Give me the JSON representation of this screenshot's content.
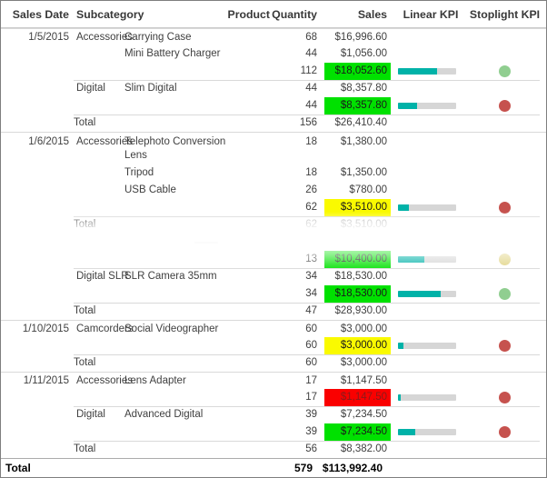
{
  "table": {
    "columns": [
      "Sales Date",
      "Subcategory",
      "Product",
      "Quantity",
      "Sales",
      "Linear KPI",
      "Stoplight KPI"
    ],
    "rows": [
      {
        "type": "detail",
        "date": "1/5/2015",
        "subcategory": "Accessories",
        "product": "Carrying Case",
        "quantity": "68",
        "sales": "$16,996.60",
        "sep": "date"
      },
      {
        "type": "detail",
        "product": "Mini Battery Charger",
        "quantity": "44",
        "sales": "$1,056.00"
      },
      {
        "type": "subtotal",
        "quantity": "112",
        "sales": "$18,052.60",
        "highlight": "green",
        "bar_pct": 67,
        "dot": "green"
      },
      {
        "type": "detail",
        "subcategory": "Digital",
        "product": "Slim Digital",
        "quantity": "44",
        "sales": "$8,357.80",
        "sep": "sub"
      },
      {
        "type": "subtotal",
        "quantity": "44",
        "sales": "$8,357.80",
        "highlight": "green",
        "bar_pct": 33,
        "dot": "red"
      },
      {
        "type": "total",
        "label": "Total",
        "quantity": "156",
        "sales": "$26,410.40",
        "sep": "sub"
      },
      {
        "type": "detail",
        "date": "1/6/2015",
        "subcategory": "Accessories",
        "product": "Telephoto Conversion Lens",
        "quantity": "18",
        "sales": "$1,380.00",
        "sep": "date",
        "tall": true
      },
      {
        "type": "detail",
        "product": "Tripod",
        "quantity": "18",
        "sales": "$1,350.00"
      },
      {
        "type": "detail",
        "product": "USB Cable",
        "quantity": "26",
        "sales": "$780.00"
      },
      {
        "type": "subtotal",
        "quantity": "62",
        "sales": "$3,510.00",
        "highlight": "yellow",
        "bar_pct": 18,
        "dot": "red"
      },
      {
        "type": "total",
        "label": "Total",
        "quantity": "62",
        "sales": "$3,510.00",
        "sep": "sub",
        "faded": true
      },
      {
        "type": "ghost"
      },
      {
        "type": "subtotal",
        "quantity": "13",
        "sales": "$10,400.00",
        "highlight": "green",
        "bar_pct": 45,
        "dot": "yellow"
      },
      {
        "type": "detail",
        "subcategory": "Digital SLR",
        "product": "SLR Camera 35mm",
        "quantity": "34",
        "sales": "$18,530.00",
        "sep": "sub"
      },
      {
        "type": "subtotal",
        "quantity": "34",
        "sales": "$18,530.00",
        "highlight": "green",
        "bar_pct": 73,
        "dot": "green"
      },
      {
        "type": "total",
        "label": "Total",
        "quantity": "47",
        "sales": "$28,930.00",
        "sep": "sub"
      },
      {
        "type": "detail",
        "date": "1/10/2015",
        "subcategory": "Camcorders",
        "product": "Social Videographer",
        "quantity": "60",
        "sales": "$3,000.00",
        "sep": "date"
      },
      {
        "type": "subtotal",
        "quantity": "60",
        "sales": "$3,000.00",
        "highlight": "yellow",
        "bar_pct": 10,
        "dot": "red"
      },
      {
        "type": "total",
        "label": "Total",
        "quantity": "60",
        "sales": "$3,000.00",
        "sep": "sub"
      },
      {
        "type": "detail",
        "date": "1/11/2015",
        "subcategory": "Accessories",
        "product": "Lens Adapter",
        "quantity": "17",
        "sales": "$1,147.50",
        "sep": "date"
      },
      {
        "type": "subtotal",
        "quantity": "17",
        "sales": "$1,147.50",
        "highlight": "red",
        "bar_pct": 5,
        "dot": "red"
      },
      {
        "type": "detail",
        "subcategory": "Digital",
        "product": "Advanced Digital",
        "quantity": "39",
        "sales": "$7,234.50",
        "sep": "sub"
      },
      {
        "type": "subtotal",
        "quantity": "39",
        "sales": "$7,234.50",
        "highlight": "green",
        "bar_pct": 30,
        "dot": "red"
      },
      {
        "type": "total",
        "label": "Total",
        "quantity": "56",
        "sales": "$8,382.00",
        "sep": "sub"
      },
      {
        "type": "grand",
        "label": "Total",
        "quantity": "579",
        "sales": "$113,992.40",
        "sep": "grand"
      }
    ]
  },
  "colors": {
    "highlight_green": "#00e100",
    "highlight_yellow": "#fafa00",
    "highlight_red": "#fa0000",
    "highlight_red_text": "#8b1a1a",
    "bar_fill": "#00b2a8",
    "bar_track": "#d6d6d6",
    "dot_green": "#90ce90",
    "dot_red": "#c6524e",
    "dot_yellow": "#e0d382"
  }
}
